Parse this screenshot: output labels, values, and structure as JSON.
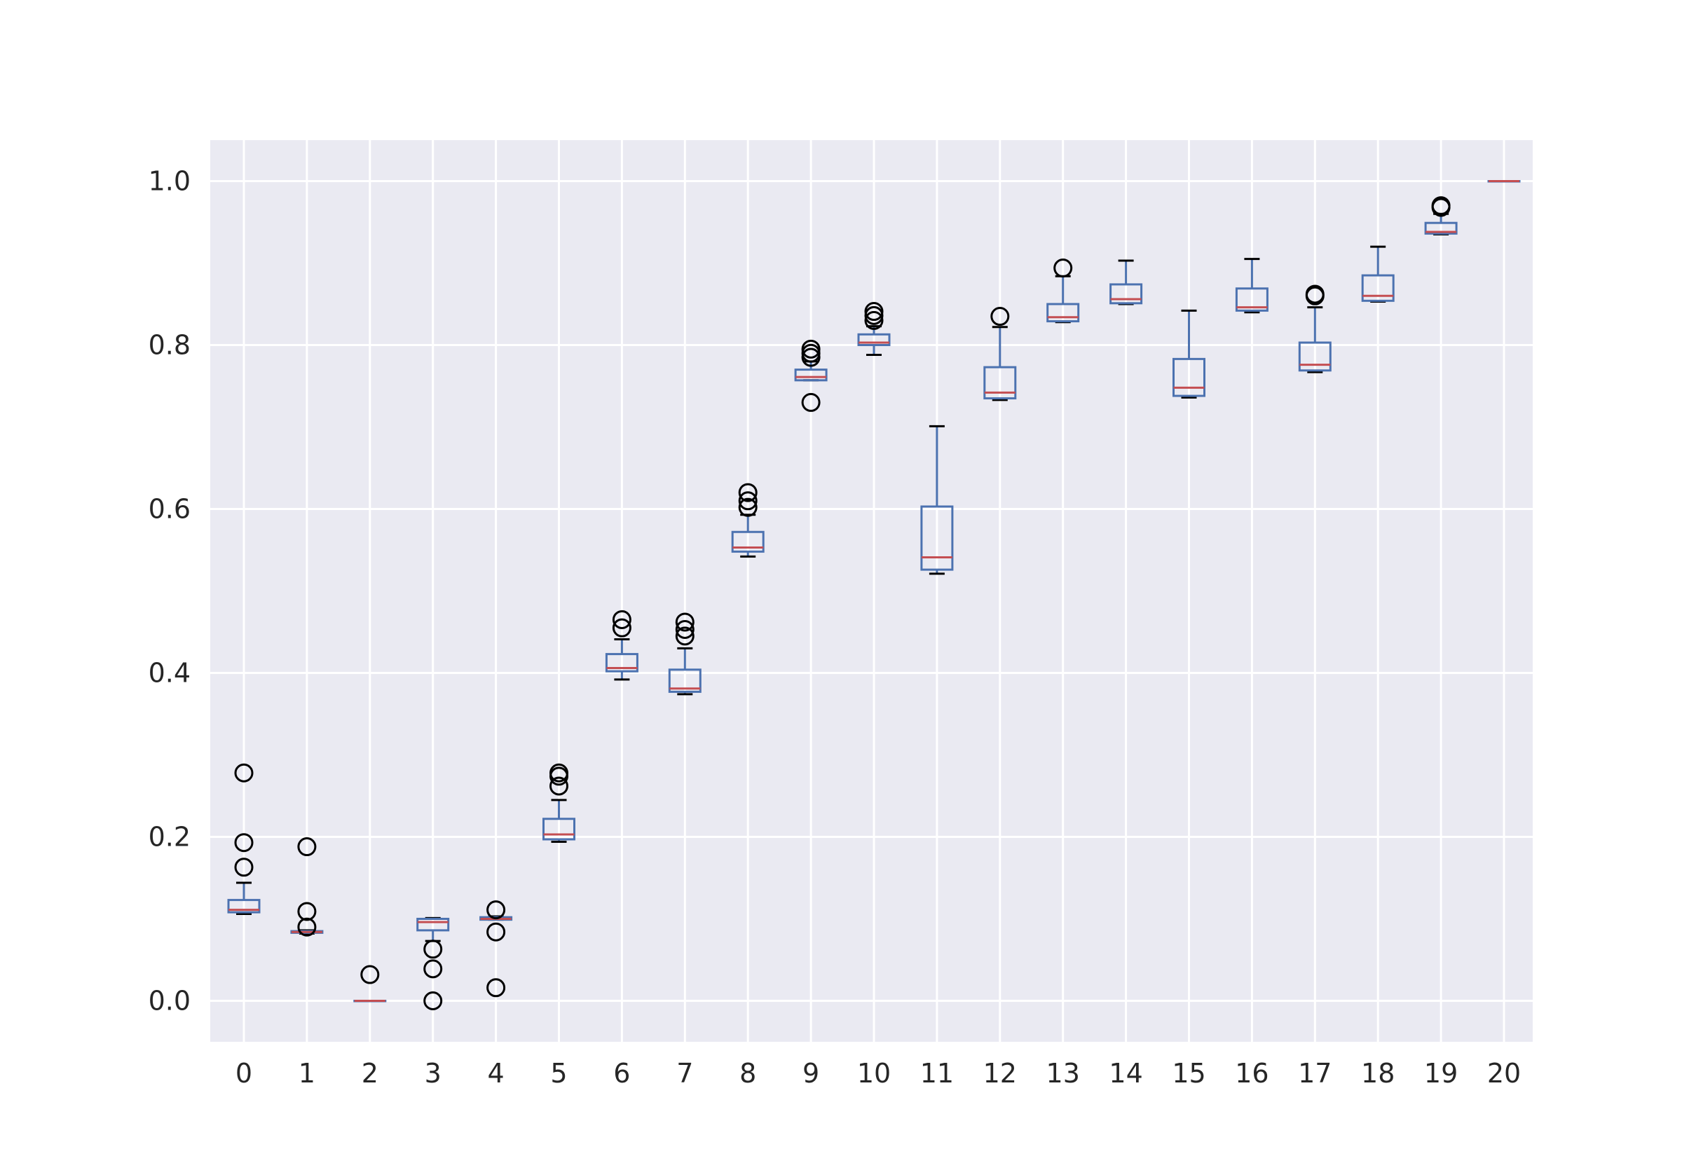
{
  "chart_data": {
    "type": "box",
    "title": "",
    "xlabel": "",
    "ylabel": "",
    "ylim": [
      -0.05,
      1.05
    ],
    "yticks": [
      "0.0",
      "0.2",
      "0.4",
      "0.6",
      "0.8",
      "1.0"
    ],
    "categories": [
      "0",
      "1",
      "2",
      "3",
      "4",
      "5",
      "6",
      "7",
      "8",
      "9",
      "10",
      "11",
      "12",
      "13",
      "14",
      "15",
      "16",
      "17",
      "18",
      "19",
      "20"
    ],
    "grid": true,
    "colors": {
      "background": "#EAEAF2",
      "grid": "#FFFFFF",
      "box": "#4C72B0",
      "median": "#C44E52",
      "cap": "#000000",
      "flier": "#000000",
      "tick_text": "#262626"
    },
    "boxes": [
      {
        "category": "0",
        "whislo": 0.106,
        "q1": 0.108,
        "med": 0.111,
        "q3": 0.123,
        "whishi": 0.144,
        "fliers": [
          0.163,
          0.193,
          0.278
        ]
      },
      {
        "category": "1",
        "whislo": 0.082,
        "q1": 0.083,
        "med": 0.084,
        "q3": 0.085,
        "whishi": 0.086,
        "fliers": [
          0.09,
          0.109,
          0.188
        ]
      },
      {
        "category": "2",
        "whislo": 0.0,
        "q1": 0.0,
        "med": 0.0,
        "q3": 0.0,
        "whishi": 0.0,
        "fliers": [
          0.032
        ]
      },
      {
        "category": "3",
        "whislo": 0.073,
        "q1": 0.086,
        "med": 0.096,
        "q3": 0.1,
        "whishi": 0.101,
        "fliers": [
          0.0,
          0.039,
          0.063
        ]
      },
      {
        "category": "4",
        "whislo": 0.099,
        "q1": 0.099,
        "med": 0.1,
        "q3": 0.102,
        "whishi": 0.103,
        "fliers": [
          0.016,
          0.084,
          0.111
        ]
      },
      {
        "category": "5",
        "whislo": 0.194,
        "q1": 0.197,
        "med": 0.203,
        "q3": 0.222,
        "whishi": 0.245,
        "fliers": [
          0.262,
          0.274,
          0.278
        ]
      },
      {
        "category": "6",
        "whislo": 0.392,
        "q1": 0.402,
        "med": 0.406,
        "q3": 0.423,
        "whishi": 0.441,
        "fliers": [
          0.455,
          0.465
        ]
      },
      {
        "category": "7",
        "whislo": 0.374,
        "q1": 0.377,
        "med": 0.381,
        "q3": 0.404,
        "whishi": 0.43,
        "fliers": [
          0.445,
          0.453,
          0.462
        ]
      },
      {
        "category": "8",
        "whislo": 0.542,
        "q1": 0.548,
        "med": 0.553,
        "q3": 0.572,
        "whishi": 0.593,
        "fliers": [
          0.602,
          0.61,
          0.62
        ]
      },
      {
        "category": "9",
        "whislo": 0.757,
        "q1": 0.757,
        "med": 0.761,
        "q3": 0.77,
        "whishi": 0.78,
        "fliers": [
          0.73,
          0.785,
          0.79,
          0.795
        ]
      },
      {
        "category": "10",
        "whislo": 0.788,
        "q1": 0.8,
        "med": 0.803,
        "q3": 0.813,
        "whishi": 0.823,
        "fliers": [
          0.83,
          0.836,
          0.841
        ]
      },
      {
        "category": "11",
        "whislo": 0.521,
        "q1": 0.526,
        "med": 0.541,
        "q3": 0.603,
        "whishi": 0.701,
        "fliers": []
      },
      {
        "category": "12",
        "whislo": 0.733,
        "q1": 0.735,
        "med": 0.742,
        "q3": 0.773,
        "whishi": 0.822,
        "fliers": [
          0.835
        ]
      },
      {
        "category": "13",
        "whislo": 0.828,
        "q1": 0.829,
        "med": 0.834,
        "q3": 0.85,
        "whishi": 0.884,
        "fliers": [
          0.894
        ]
      },
      {
        "category": "14",
        "whislo": 0.85,
        "q1": 0.851,
        "med": 0.856,
        "q3": 0.874,
        "whishi": 0.903,
        "fliers": []
      },
      {
        "category": "15",
        "whislo": 0.736,
        "q1": 0.738,
        "med": 0.748,
        "q3": 0.783,
        "whishi": 0.842,
        "fliers": []
      },
      {
        "category": "16",
        "whislo": 0.84,
        "q1": 0.842,
        "med": 0.846,
        "q3": 0.869,
        "whishi": 0.905,
        "fliers": []
      },
      {
        "category": "17",
        "whislo": 0.767,
        "q1": 0.769,
        "med": 0.776,
        "q3": 0.803,
        "whishi": 0.846,
        "fliers": [
          0.86,
          0.862
        ]
      },
      {
        "category": "18",
        "whislo": 0.853,
        "q1": 0.854,
        "med": 0.86,
        "q3": 0.885,
        "whishi": 0.92,
        "fliers": []
      },
      {
        "category": "19",
        "whislo": 0.935,
        "q1": 0.936,
        "med": 0.938,
        "q3": 0.949,
        "whishi": 0.96,
        "fliers": [
          0.968,
          0.97
        ]
      },
      {
        "category": "20",
        "whislo": 1.0,
        "q1": 1.0,
        "med": 1.0,
        "q3": 1.0,
        "whishi": 1.0,
        "fliers": []
      }
    ]
  }
}
